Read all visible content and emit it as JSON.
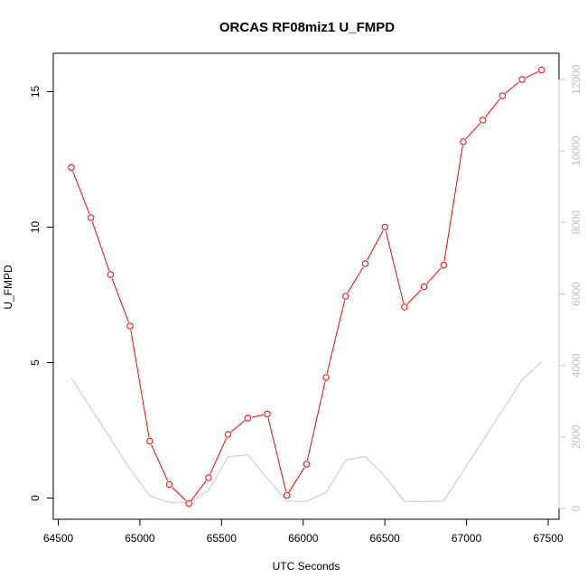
{
  "chart_data": {
    "type": "line",
    "title": "ORCAS RF08miz1 U_FMPD",
    "xlabel": "UTC Seconds",
    "ylabel": "U_FMPD",
    "xlim": [
      64500,
      67500
    ],
    "ylim": [
      0,
      15
    ],
    "xticks": [
      "64500",
      "65000",
      "65500",
      "66000",
      "66500",
      "67000",
      "67500"
    ],
    "yticks": [
      "0",
      "5",
      "10",
      "15"
    ],
    "y2ticks": [
      "0",
      "2000",
      "4000",
      "6000",
      "8000",
      "10000",
      "12000"
    ],
    "series": [
      {
        "axis": "left",
        "color": "#ff0000",
        "markers": "open-circle",
        "x": [
          64580,
          64700,
          64820,
          64940,
          65060,
          65180,
          65300,
          65420,
          65540,
          65660,
          65780,
          65900,
          66020,
          66140,
          66260,
          66380,
          66500,
          66620,
          66740,
          66860,
          66980,
          67100,
          67220,
          67340,
          67460
        ],
        "y": [
          12.2,
          10.35,
          8.25,
          6.35,
          2.1,
          0.5,
          -0.2,
          0.75,
          2.35,
          2.95,
          3.1,
          0.1,
          1.25,
          4.45,
          7.45,
          8.65,
          10.0,
          7.05,
          7.8,
          8.6,
          13.15,
          13.95,
          14.85,
          15.45,
          15.8
        ]
      },
      {
        "axis": "right",
        "color": "#c8c8c8",
        "markers": "none",
        "x": [
          64580,
          64700,
          64820,
          64940,
          65060,
          65180,
          65300,
          65420,
          65540,
          65660,
          65780,
          65900,
          66020,
          66140,
          66260,
          66380,
          66500,
          66620,
          66740,
          66860,
          66980,
          67100,
          67220,
          67340,
          67460
        ],
        "y": [
          3650,
          2800,
          1950,
          1100,
          350,
          170,
          170,
          500,
          1450,
          1500,
          850,
          200,
          200,
          450,
          1350,
          1450,
          900,
          200,
          190,
          210,
          1050,
          1900,
          2750,
          3600,
          4100
        ]
      }
    ],
    "y2lim": [
      0,
      12000
    ],
    "grid": false,
    "legend": "none"
  }
}
